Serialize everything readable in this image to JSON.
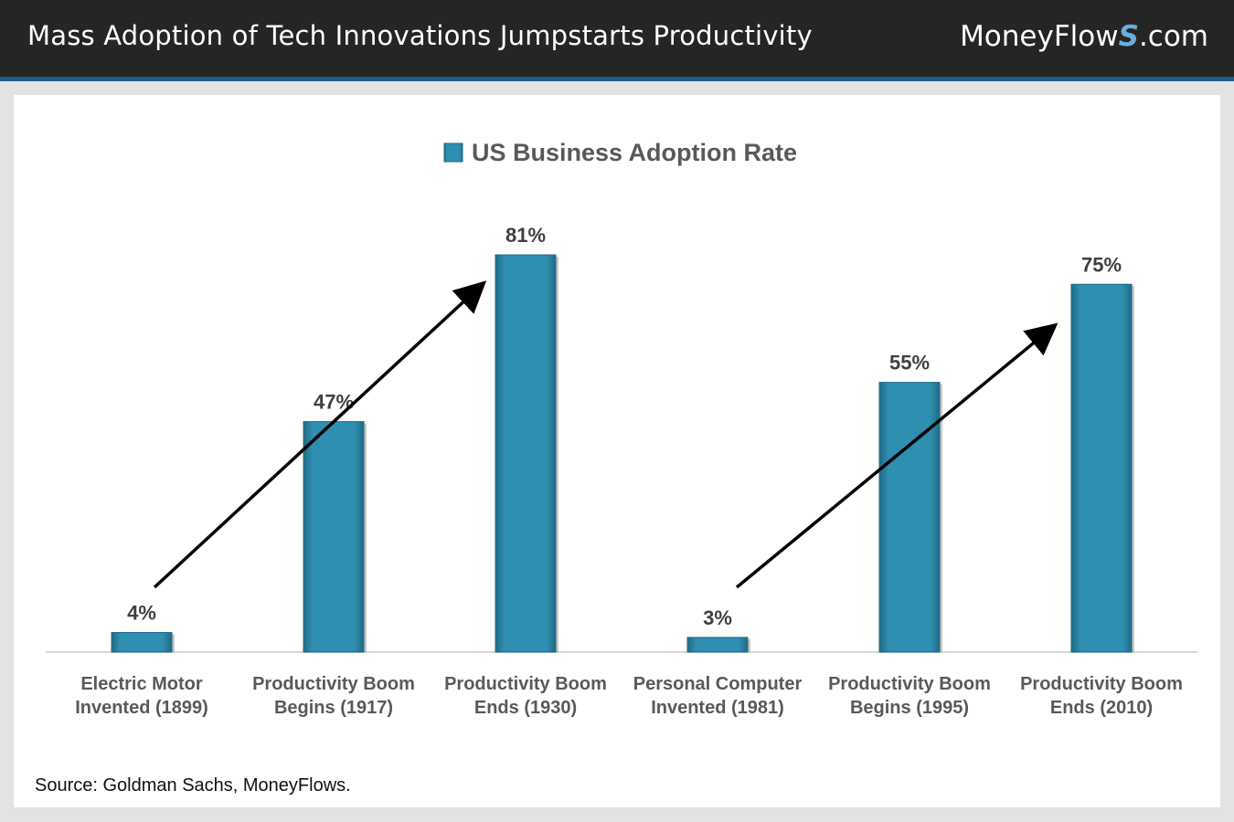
{
  "header": {
    "title": "Mass Adoption of Tech Innovations Jumpstarts Productivity",
    "brand_prefix": "MoneyFlow",
    "brand_s": "S",
    "brand_suffix": ".com"
  },
  "chart_data": {
    "type": "bar",
    "legend": "US Business Adoption Rate",
    "legend_position": "top-center",
    "categories": [
      [
        "Electric Motor",
        "Invented (1899)"
      ],
      [
        "Productivity Boom",
        "Begins (1917)"
      ],
      [
        "Productivity Boom",
        "Ends (1930)"
      ],
      [
        "Personal Computer",
        "Invented (1981)"
      ],
      [
        "Productivity Boom",
        "Begins (1995)"
      ],
      [
        "Productivity Boom",
        "Ends (2010)"
      ]
    ],
    "series": [
      {
        "name": "US Business Adoption Rate",
        "values": [
          4,
          47,
          81,
          3,
          55,
          75
        ]
      }
    ],
    "data_labels": [
      "4%",
      "47%",
      "81%",
      "3%",
      "55%",
      "75%"
    ],
    "ylim": [
      0,
      100
    ],
    "annotations": [
      {
        "type": "arrow",
        "from_category": 0,
        "to_category": 2,
        "note": "upward trend arrow"
      },
      {
        "type": "arrow",
        "from_category": 3,
        "to_category": 5,
        "note": "upward trend arrow"
      }
    ],
    "colors": {
      "bar": "#2e8fb0",
      "bar_edge": "#1f6a85"
    }
  },
  "footer": {
    "source": "Source: Goldman Sachs, MoneyFlows."
  }
}
